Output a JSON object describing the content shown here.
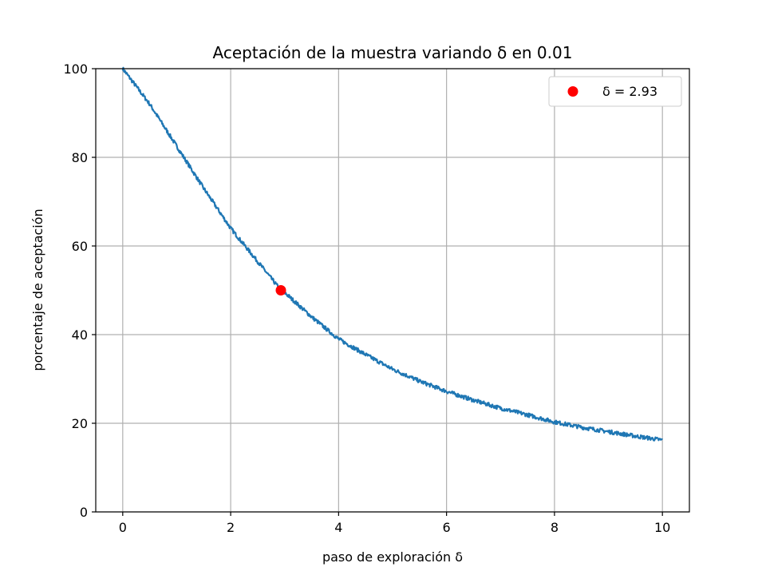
{
  "chart_data": {
    "type": "line",
    "title": "Aceptación de la muestra variando δ en 0.01",
    "xlabel": "paso de exploración δ",
    "ylabel": "porcentaje de aceptación",
    "xlim": [
      -0.5,
      10.5
    ],
    "ylim": [
      0,
      100
    ],
    "xticks": [
      0,
      2,
      4,
      6,
      8,
      10
    ],
    "yticks": [
      0,
      20,
      40,
      60,
      80,
      100
    ],
    "grid": true,
    "legend_position": "top-right",
    "series": [
      {
        "color": "#1f77b4",
        "x": [
          0,
          0.5,
          1,
          1.5,
          2,
          2.5,
          2.93,
          3,
          3.5,
          4,
          4.5,
          5,
          5.5,
          6,
          6.5,
          7,
          7.5,
          8,
          8.5,
          9,
          9.5,
          10
        ],
        "y": [
          100,
          92,
          82.5,
          73,
          64,
          56.5,
          50,
          49.5,
          44,
          39,
          35.5,
          32.2,
          29.5,
          27.2,
          25.2,
          23.4,
          21.9,
          20.3,
          19.1,
          18.1,
          17.1,
          16.2
        ]
      },
      {
        "name": "δ = 2.93",
        "type": "scatter",
        "color": "#ff0000",
        "x": [
          2.93
        ],
        "y": [
          50
        ]
      }
    ]
  }
}
